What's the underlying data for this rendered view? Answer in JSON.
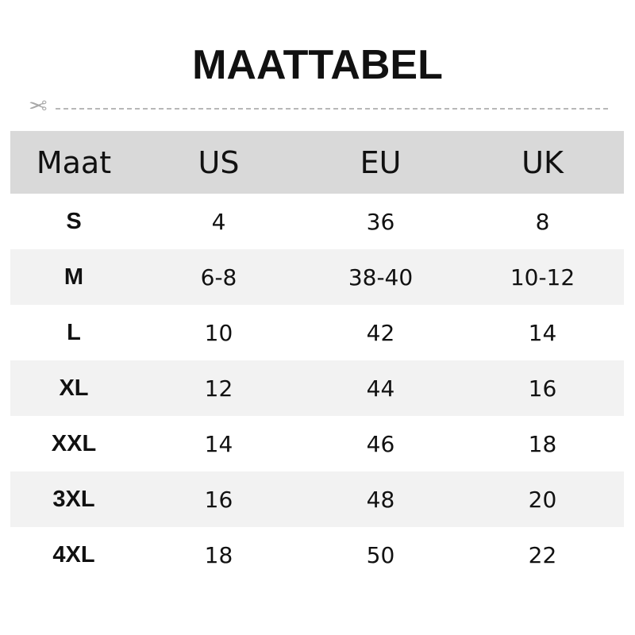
{
  "title": "MAATTABEL",
  "icons": {
    "cut": "scissors-icon"
  },
  "colors": {
    "header_bg": "#d9d9d9",
    "alt_row_bg": "#f2f2f2"
  },
  "headers": [
    "Maat",
    "US",
    "EU",
    "UK"
  ],
  "rows": [
    [
      "S",
      "4",
      "36",
      "8"
    ],
    [
      "M",
      "6-8",
      "38-40",
      "10-12"
    ],
    [
      "L",
      "10",
      "42",
      "14"
    ],
    [
      "XL",
      "12",
      "44",
      "16"
    ],
    [
      "XXL",
      "14",
      "46",
      "18"
    ],
    [
      "3XL",
      "16",
      "48",
      "20"
    ],
    [
      "4XL",
      "18",
      "50",
      "22"
    ]
  ]
}
